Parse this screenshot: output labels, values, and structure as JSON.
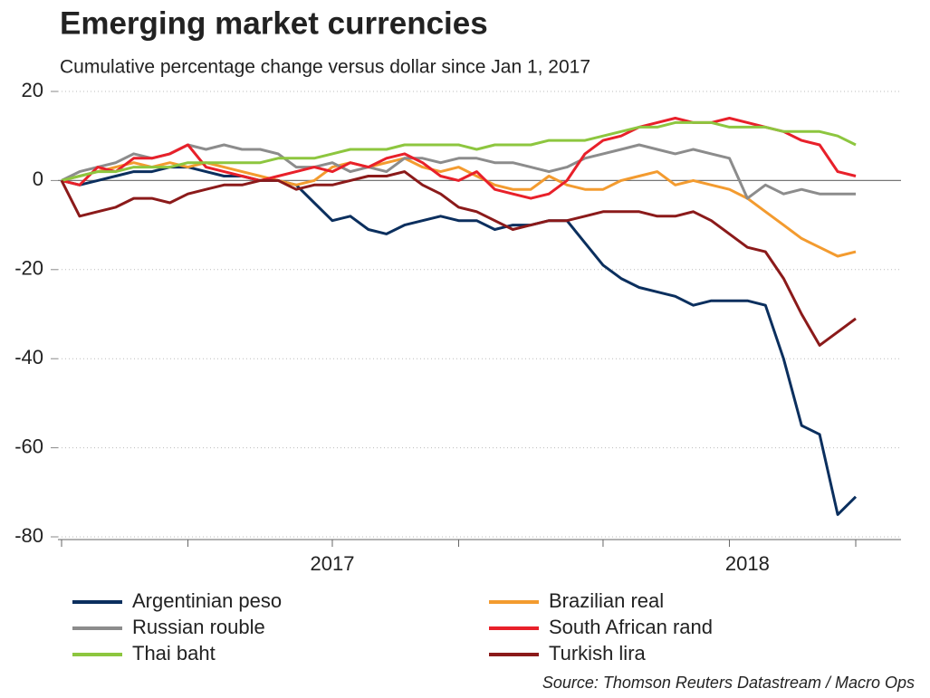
{
  "chart_data": {
    "type": "line",
    "title": "Emerging market currencies",
    "subtitle": "Cumulative percentage change versus dollar since Jan 1, 2017",
    "source": "Source: Thomson Reuters Datastream / Macro Ops",
    "categories": [
      null,
      null,
      null,
      null,
      null,
      null,
      null,
      null,
      null,
      null,
      null,
      null,
      null,
      null,
      null,
      "2017",
      null,
      null,
      null,
      null,
      null,
      null,
      null,
      null,
      null,
      null,
      null,
      null,
      null,
      null,
      null,
      null,
      null,
      null,
      null,
      null,
      null,
      null,
      "2018",
      null,
      null,
      null,
      null,
      null,
      null
    ],
    "ylim": [
      -80,
      20
    ],
    "yticks": [
      20,
      0,
      -20,
      -40,
      -60,
      -80
    ],
    "grid": true,
    "legend": "bottom",
    "series": [
      {
        "name": "Argentinian peso",
        "color": "#0b2f5e",
        "values": [
          0,
          -1,
          0,
          1,
          2,
          2,
          3,
          3,
          2,
          1,
          1,
          0,
          0,
          -1,
          -5,
          -9,
          -8,
          -11,
          -12,
          -10,
          -9,
          -8,
          -9,
          -9,
          -11,
          -10,
          -10,
          -9,
          -9,
          -14,
          -19,
          -22,
          -24,
          -25,
          -26,
          -28,
          -27,
          -27,
          -27,
          -28,
          -40,
          -55,
          -57,
          -75,
          -71
        ]
      },
      {
        "name": "Brazilian real",
        "color": "#f39b2f",
        "values": [
          0,
          1,
          2,
          3,
          4,
          3,
          4,
          3,
          4,
          3,
          2,
          1,
          0,
          -1,
          0,
          3,
          4,
          3,
          4,
          5,
          3,
          2,
          3,
          1,
          -1,
          -2,
          -2,
          1,
          -1,
          -2,
          -2,
          0,
          1,
          2,
          -1,
          0,
          -1,
          -2,
          -4,
          -7,
          -10,
          -13,
          -15,
          -17,
          -16
        ]
      },
      {
        "name": "Russian rouble",
        "color": "#8c8c8c",
        "values": [
          0,
          2,
          3,
          4,
          6,
          5,
          6,
          8,
          7,
          8,
          7,
          7,
          6,
          3,
          3,
          4,
          2,
          3,
          2,
          5,
          5,
          4,
          5,
          5,
          4,
          4,
          3,
          2,
          3,
          5,
          6,
          7,
          8,
          7,
          6,
          7,
          6,
          5,
          -4,
          -1,
          -3,
          -2,
          -3,
          -3,
          -3
        ]
      },
      {
        "name": "South African rand",
        "color": "#e8202a",
        "values": [
          0,
          -1,
          3,
          2,
          5,
          5,
          6,
          8,
          3,
          2,
          1,
          0,
          1,
          2,
          3,
          2,
          4,
          3,
          5,
          6,
          4,
          1,
          0,
          2,
          -2,
          -3,
          -4,
          -3,
          0,
          6,
          9,
          10,
          12,
          13,
          14,
          13,
          13,
          14,
          13,
          12,
          11,
          9,
          8,
          2,
          1
        ]
      },
      {
        "name": "Thai baht",
        "color": "#8dc63f",
        "values": [
          0,
          1,
          2,
          2,
          3,
          3,
          3,
          4,
          4,
          4,
          4,
          4,
          5,
          5,
          5,
          6,
          7,
          7,
          7,
          8,
          8,
          8,
          8,
          7,
          8,
          8,
          8,
          9,
          9,
          9,
          10,
          11,
          12,
          12,
          13,
          13,
          13,
          12,
          12,
          12,
          11,
          11,
          11,
          10,
          8
        ]
      },
      {
        "name": "Turkish lira",
        "color": "#8b1a1a",
        "values": [
          0,
          -8,
          -7,
          -6,
          -4,
          -4,
          -5,
          -3,
          -2,
          -1,
          -1,
          0,
          0,
          -2,
          -1,
          -1,
          0,
          1,
          1,
          2,
          -1,
          -3,
          -6,
          -7,
          -9,
          -11,
          -10,
          -9,
          -9,
          -8,
          -7,
          -7,
          -7,
          -8,
          -8,
          -7,
          -9,
          -12,
          -15,
          -16,
          -22,
          -30,
          -37,
          -34,
          -31
        ]
      }
    ]
  }
}
